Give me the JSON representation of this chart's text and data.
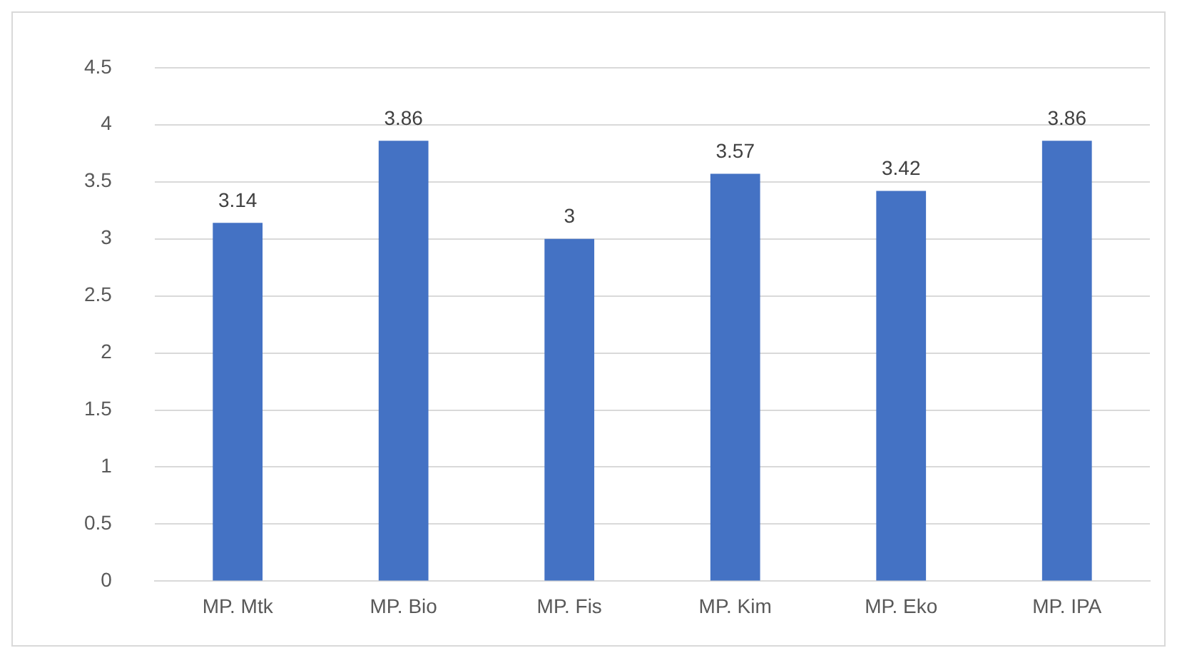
{
  "chart_data": {
    "type": "bar",
    "categories": [
      "MP. Mtk",
      "MP. Bio",
      "MP. Fis",
      "MP. Kim",
      "MP. Eko",
      "MP. IPA"
    ],
    "values": [
      3.14,
      3.86,
      3,
      3.57,
      3.42,
      3.86
    ],
    "color": "#4472c4",
    "ylim": [
      0,
      4.5
    ],
    "yticks": [
      0,
      0.5,
      1,
      1.5,
      2,
      2.5,
      3,
      3.5,
      4,
      4.5
    ],
    "grid": "y",
    "data_labels": true,
    "legend": false
  }
}
